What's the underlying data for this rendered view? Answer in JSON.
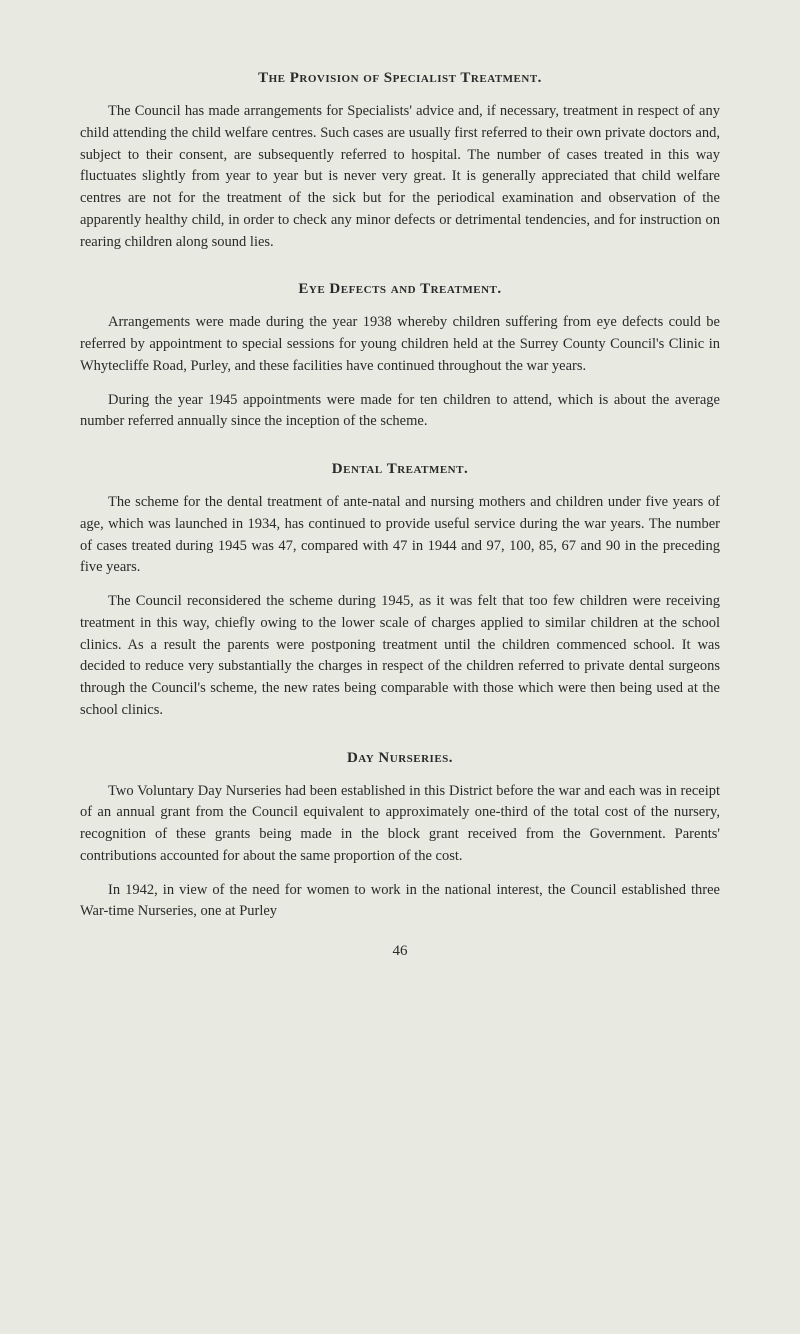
{
  "sections": [
    {
      "heading": "The Provision of Specialist Treatment.",
      "paragraphs": [
        "The Council has made arrangements for Specialists' advice and, if necessary, treatment in respect of any child attending the child welfare centres. Such cases are usually first referred to their own private doctors and, subject to their consent, are subsequently referred to hospital. The number of cases treated in this way fluctuates slightly from year to year but is never very great. It is generally appreciated that child welfare centres are not for the treatment of the sick but for the periodical examination and observation of the apparently healthy child, in order to check any minor defects or detrimental tendencies, and for instruction on rearing children along sound lies."
      ]
    },
    {
      "heading": "Eye Defects and Treatment.",
      "paragraphs": [
        "Arrangements were made during the year 1938 whereby children suffering from eye defects could be referred by appointment to special sessions for young children held at the Surrey County Council's Clinic in Whytecliffe Road, Purley, and these facilities have continued throughout the war years.",
        "During the year 1945 appointments were made for ten children to attend, which is about the average number referred annually since the inception of the scheme."
      ]
    },
    {
      "heading": "Dental Treatment.",
      "paragraphs": [
        "The scheme for the dental treatment of ante-natal and nursing mothers and children under five years of age, which was launched in 1934, has continued to provide useful service during the war years. The number of cases treated during 1945 was 47, compared with 47 in 1944 and 97, 100, 85, 67 and 90 in the preceding five years.",
        "The Council reconsidered the scheme during 1945, as it was felt that too few children were receiving treatment in this way, chiefly owing to the lower scale of charges applied to similar children at the school clinics. As a result the parents were postponing treatment until the children commenced school. It was decided to reduce very substantially the charges in respect of the children referred to private dental surgeons through the Council's scheme, the new rates being comparable with those which were then being used at the school clinics."
      ]
    },
    {
      "heading": "Day Nurseries.",
      "paragraphs": [
        "Two Voluntary Day Nurseries had been established in this District before the war and each was in receipt of an annual grant from the Council equivalent to approximately one-third of the total cost of the nursery, recognition of these grants being made in the block grant received from the Government. Parents' contributions accounted for about the same proportion of the cost.",
        "In 1942, in view of the need for women to work in the national interest, the Council established three War-time Nurseries, one at Purley"
      ]
    }
  ],
  "page_number": "46",
  "colors": {
    "background": "#e8e9e0",
    "text": "#2a2a2a"
  },
  "typography": {
    "body_fontsize": 14.5,
    "heading_fontsize": 15,
    "line_height": 1.5,
    "text_indent": 28
  }
}
